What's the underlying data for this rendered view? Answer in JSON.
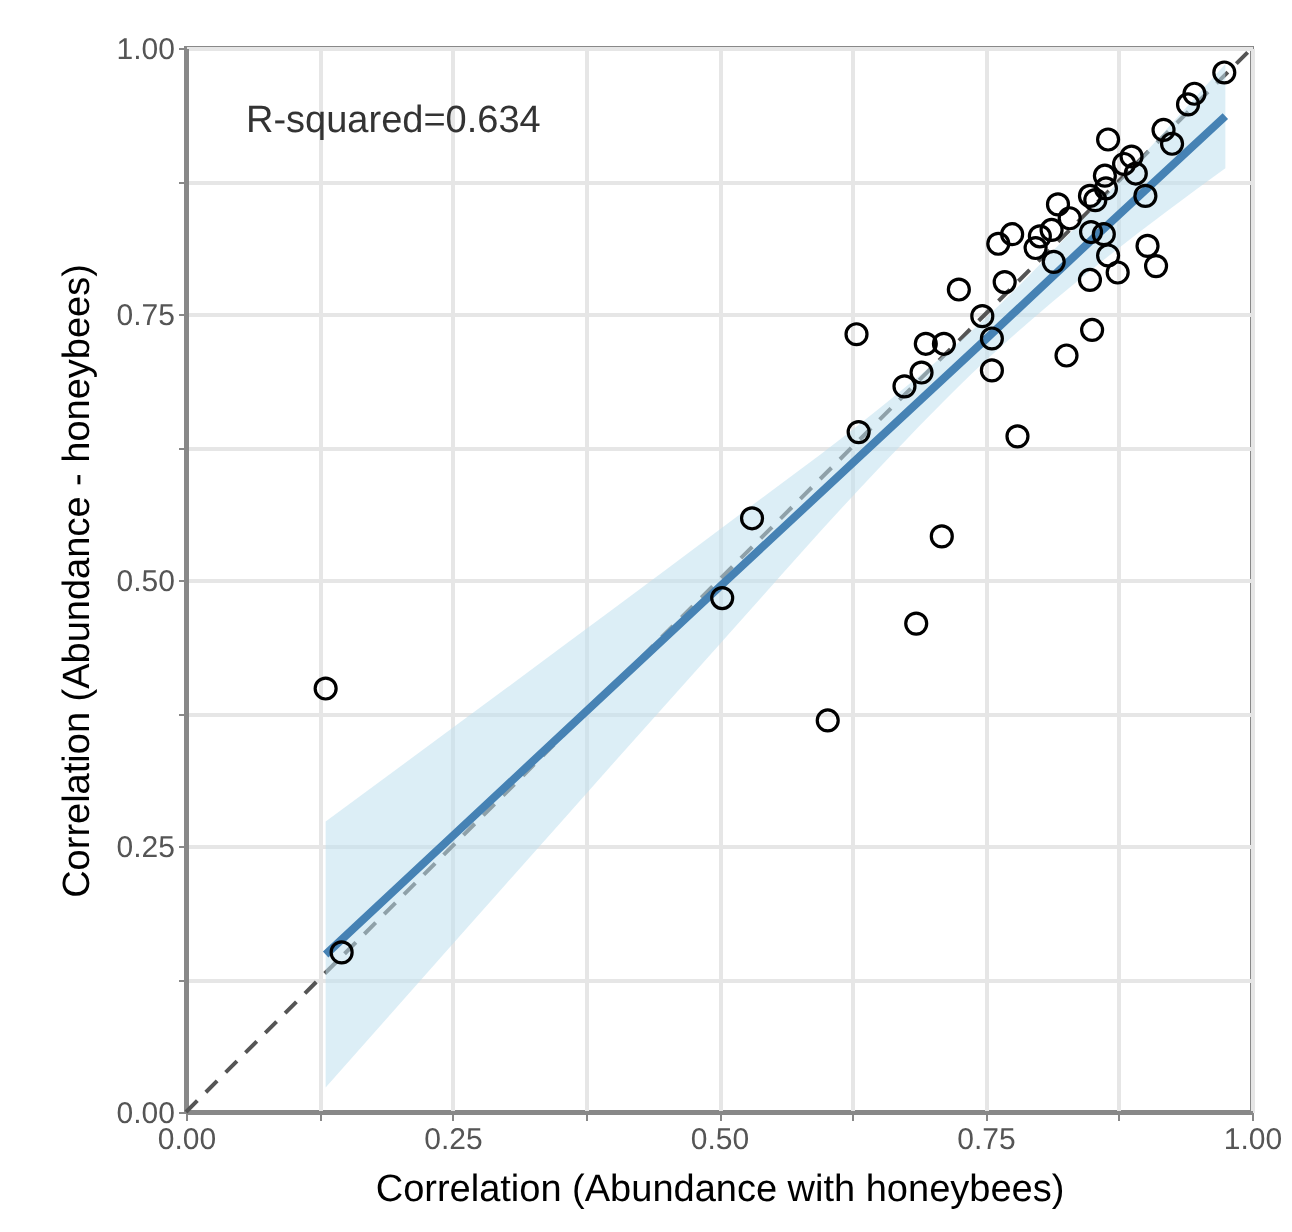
{
  "chart_data": {
    "type": "scatter",
    "xlabel": "Correlation (Abundance with honeybees)",
    "ylabel": "Correlation (Abundance - honeybees)",
    "annotations": [
      "R-squared=0.634"
    ],
    "xlim": [
      0,
      1
    ],
    "ylim": [
      0,
      1
    ],
    "xticks": [
      {
        "value": 0,
        "label": "0.00"
      },
      {
        "value": 0.125,
        "label": null
      },
      {
        "value": 0.25,
        "label": "0.25"
      },
      {
        "value": 0.375,
        "label": null
      },
      {
        "value": 0.5,
        "label": "0.50"
      },
      {
        "value": 0.625,
        "label": null
      },
      {
        "value": 0.75,
        "label": "0.75"
      },
      {
        "value": 0.875,
        "label": null
      },
      {
        "value": 1,
        "label": "1.00"
      }
    ],
    "yticks": [
      {
        "value": 0,
        "label": "0.00"
      },
      {
        "value": 0.125,
        "label": null
      },
      {
        "value": 0.25,
        "label": "0.25"
      },
      {
        "value": 0.375,
        "label": null
      },
      {
        "value": 0.5,
        "label": "0.50"
      },
      {
        "value": 0.625,
        "label": null
      },
      {
        "value": 0.75,
        "label": "0.75"
      },
      {
        "value": 0.875,
        "label": null
      },
      {
        "value": 1,
        "label": "1.00"
      }
    ],
    "grid": true,
    "series": [
      {
        "type": "line",
        "color": "#555555",
        "line_style": "dashed",
        "marker": "none",
        "x": [
          0,
          1
        ],
        "values": [
          0,
          1
        ]
      },
      {
        "type": "line",
        "color": "#4682b4",
        "line_style": "solid",
        "marker": "none",
        "x": [
          0.131,
          0.3,
          0.5,
          0.65,
          0.75,
          0.85,
          0.975
        ],
        "values": [
          0.148,
          0.306,
          0.493,
          0.633,
          0.726,
          0.82,
          0.936
        ],
        "lower": [
          0.023,
          0.214,
          0.439,
          0.605,
          0.706,
          0.792,
          0.887
        ],
        "upper": [
          0.273,
          0.398,
          0.547,
          0.661,
          0.746,
          0.848,
          0.985
        ]
      },
      {
        "color": "#000000",
        "marker": "circle",
        "x": [
          0.131,
          0.146,
          0.503,
          0.531,
          0.602,
          0.629,
          0.631,
          0.685,
          0.674,
          0.69,
          0.694,
          0.711,
          0.709,
          0.725,
          0.747,
          0.756,
          0.756,
          0.762,
          0.768,
          0.775,
          0.78,
          0.797,
          0.801,
          0.812,
          0.818,
          0.829,
          0.814,
          0.826,
          0.85,
          0.848,
          0.848,
          0.853,
          0.861,
          0.863,
          0.865,
          0.865,
          0.874,
          0.88,
          0.887,
          0.891,
          0.9,
          0.902,
          0.91,
          0.917,
          0.925,
          0.94,
          0.946,
          0.974,
          0.849,
          0.862
        ],
        "values": [
          0.398,
          0.15,
          0.483,
          0.558,
          0.368,
          0.731,
          0.639,
          0.459,
          0.682,
          0.695,
          0.722,
          0.722,
          0.541,
          0.773,
          0.748,
          0.727,
          0.697,
          0.816,
          0.78,
          0.825,
          0.635,
          0.812,
          0.823,
          0.829,
          0.853,
          0.84,
          0.799,
          0.711,
          0.735,
          0.782,
          0.861,
          0.857,
          0.825,
          0.868,
          0.914,
          0.805,
          0.789,
          0.891,
          0.898,
          0.882,
          0.861,
          0.814,
          0.795,
          0.923,
          0.91,
          0.947,
          0.957,
          0.977,
          0.827,
          0.88
        ]
      }
    ]
  }
}
